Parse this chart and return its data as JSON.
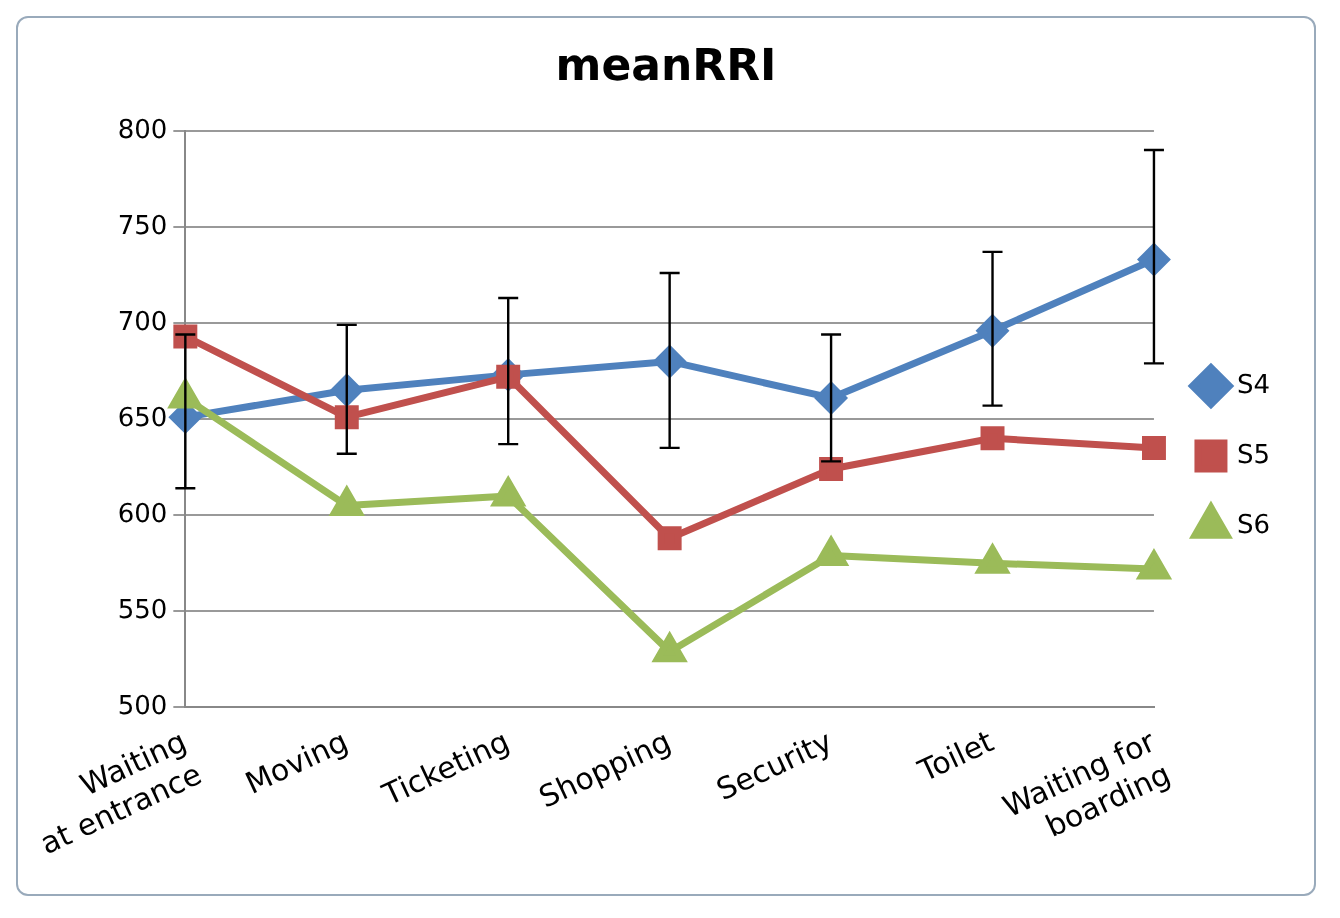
{
  "chart_data": {
    "type": "line",
    "title": "meanRRI",
    "categories": [
      "Waiting\nat entrance",
      "Moving",
      "Ticketing",
      "Shopping",
      "Security",
      "Toilet",
      "Waiting for\nboarding"
    ],
    "series": [
      {
        "name": "S4",
        "color": "#4f81bd",
        "marker": "diamond",
        "values": [
          651,
          665,
          673,
          680,
          661,
          696,
          733
        ],
        "errors": [
          [
            614,
            694
          ],
          [
            632,
            699
          ],
          [
            637,
            713
          ],
          [
            635,
            726
          ],
          [
            628,
            694
          ],
          [
            657,
            737
          ],
          [
            679,
            790
          ]
        ]
      },
      {
        "name": "S5",
        "color": "#c0504d",
        "marker": "square",
        "values": [
          693,
          651,
          672,
          588,
          624,
          640,
          635
        ]
      },
      {
        "name": "S6",
        "color": "#9bbb59",
        "marker": "triangle",
        "values": [
          661,
          605,
          610,
          529,
          579,
          575,
          572
        ]
      }
    ],
    "ylim": [
      500,
      800
    ],
    "yticks": [
      500,
      550,
      600,
      650,
      700,
      750,
      800
    ],
    "grid": "y",
    "legend": "right"
  }
}
